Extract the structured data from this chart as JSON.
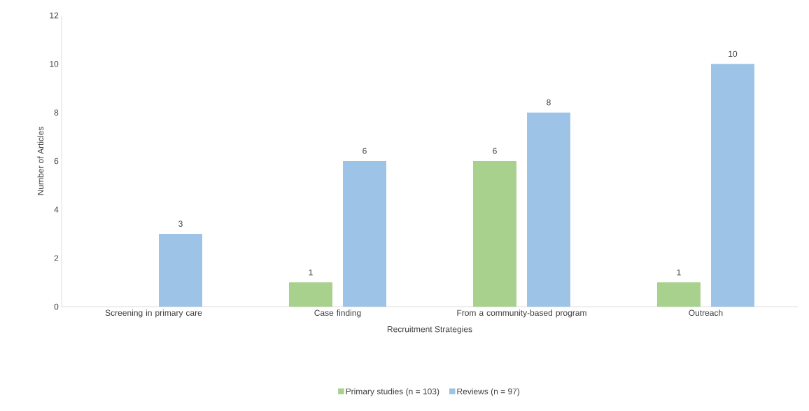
{
  "chart_data": {
    "type": "bar",
    "xlabel": "Recruitment Strategies",
    "ylabel": "Number of Articles",
    "categories": [
      "Screening in primary care",
      "Case finding",
      "From a community-based program",
      "Outreach"
    ],
    "series": [
      {
        "name": "Primary studies (n = 103)",
        "color": "#a9d18e",
        "values": [
          null,
          1,
          6,
          1
        ]
      },
      {
        "name": "Reviews (n = 97)",
        "color": "#9dc3e6",
        "values": [
          3,
          6,
          8,
          10
        ]
      }
    ],
    "ylim": [
      0,
      12
    ],
    "yticks": [
      0,
      2,
      4,
      6,
      8,
      10,
      12
    ],
    "data_labels": true,
    "legend": "bottom",
    "grid": false
  }
}
